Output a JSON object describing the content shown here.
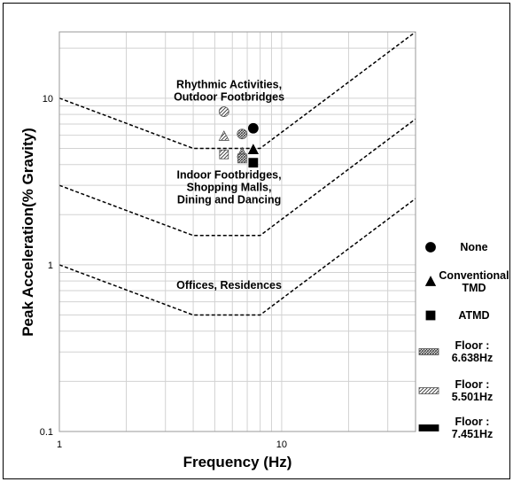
{
  "chart_data": {
    "type": "scatter",
    "xlabel": "Frequency  (Hz)",
    "ylabel": "Peak Acceleration(% Gravity)",
    "xscale": "log",
    "yscale": "log",
    "xlim": [
      1,
      40
    ],
    "ylim": [
      0.1,
      25
    ],
    "x_ticks": [
      {
        "value": 1,
        "label": "1"
      },
      {
        "value": 10,
        "label": "10"
      }
    ],
    "y_ticks": [
      {
        "value": 0.1,
        "label": "0.1"
      },
      {
        "value": 1,
        "label": "1"
      },
      {
        "value": 10,
        "label": "10"
      }
    ],
    "grid": true,
    "legend_position": "right",
    "limit_curves": [
      {
        "points": [
          [
            1,
            10
          ],
          [
            4,
            5
          ],
          [
            8,
            5
          ],
          [
            40,
            25
          ]
        ]
      },
      {
        "points": [
          [
            1,
            3
          ],
          [
            4,
            1.5
          ],
          [
            8,
            1.5
          ],
          [
            40,
            7.5
          ]
        ]
      },
      {
        "points": [
          [
            1,
            1
          ],
          [
            4,
            0.5
          ],
          [
            8,
            0.5
          ],
          [
            40,
            2.5
          ]
        ]
      }
    ],
    "annotations": [
      {
        "lines": [
          "Rhythmic Activities,",
          "Outdoor Footbridges"
        ],
        "x": 5.8,
        "y": 11.5
      },
      {
        "lines": [
          "Indoor Footbridges,",
          "Shopping Malls,",
          "Dining and Dancing"
        ],
        "x": 5.8,
        "y": 3.3
      },
      {
        "lines": [
          "Offices, Residences"
        ],
        "x": 5.8,
        "y": 0.72
      }
    ],
    "series": [
      {
        "marker": "circle",
        "fill": "hatch",
        "points": [
          {
            "x": 6.638,
            "y": 6.1
          }
        ]
      },
      {
        "marker": "circle",
        "fill": "diag",
        "points": [
          {
            "x": 5.501,
            "y": 8.3
          }
        ]
      },
      {
        "marker": "circle",
        "fill": "solid",
        "points": [
          {
            "x": 7.451,
            "y": 6.6
          }
        ]
      },
      {
        "marker": "triangle",
        "fill": "hatch",
        "points": [
          {
            "x": 6.638,
            "y": 4.7
          }
        ]
      },
      {
        "marker": "triangle",
        "fill": "diag",
        "points": [
          {
            "x": 5.501,
            "y": 5.9
          }
        ]
      },
      {
        "marker": "triangle",
        "fill": "solid",
        "points": [
          {
            "x": 7.451,
            "y": 4.9
          }
        ]
      },
      {
        "marker": "square",
        "fill": "hatch",
        "points": [
          {
            "x": 6.638,
            "y": 4.35
          }
        ]
      },
      {
        "marker": "square",
        "fill": "diag",
        "points": [
          {
            "x": 5.501,
            "y": 4.6
          }
        ]
      },
      {
        "marker": "square",
        "fill": "solid",
        "points": [
          {
            "x": 7.451,
            "y": 4.1
          }
        ]
      }
    ],
    "legend": [
      {
        "symbol": "circle",
        "fill": "solid",
        "lines": [
          "None"
        ]
      },
      {
        "symbol": "triangle",
        "fill": "solid",
        "lines": [
          "Conventional",
          "TMD"
        ]
      },
      {
        "symbol": "square",
        "fill": "solid",
        "lines": [
          "ATMD"
        ]
      },
      {
        "symbol": "rect",
        "fill": "hatch",
        "lines": [
          "Floor :",
          "6.638Hz"
        ]
      },
      {
        "symbol": "rect",
        "fill": "diag",
        "lines": [
          "Floor :",
          "5.501Hz"
        ]
      },
      {
        "symbol": "rect",
        "fill": "solid",
        "lines": [
          "Floor :",
          "7.451Hz"
        ]
      }
    ]
  }
}
